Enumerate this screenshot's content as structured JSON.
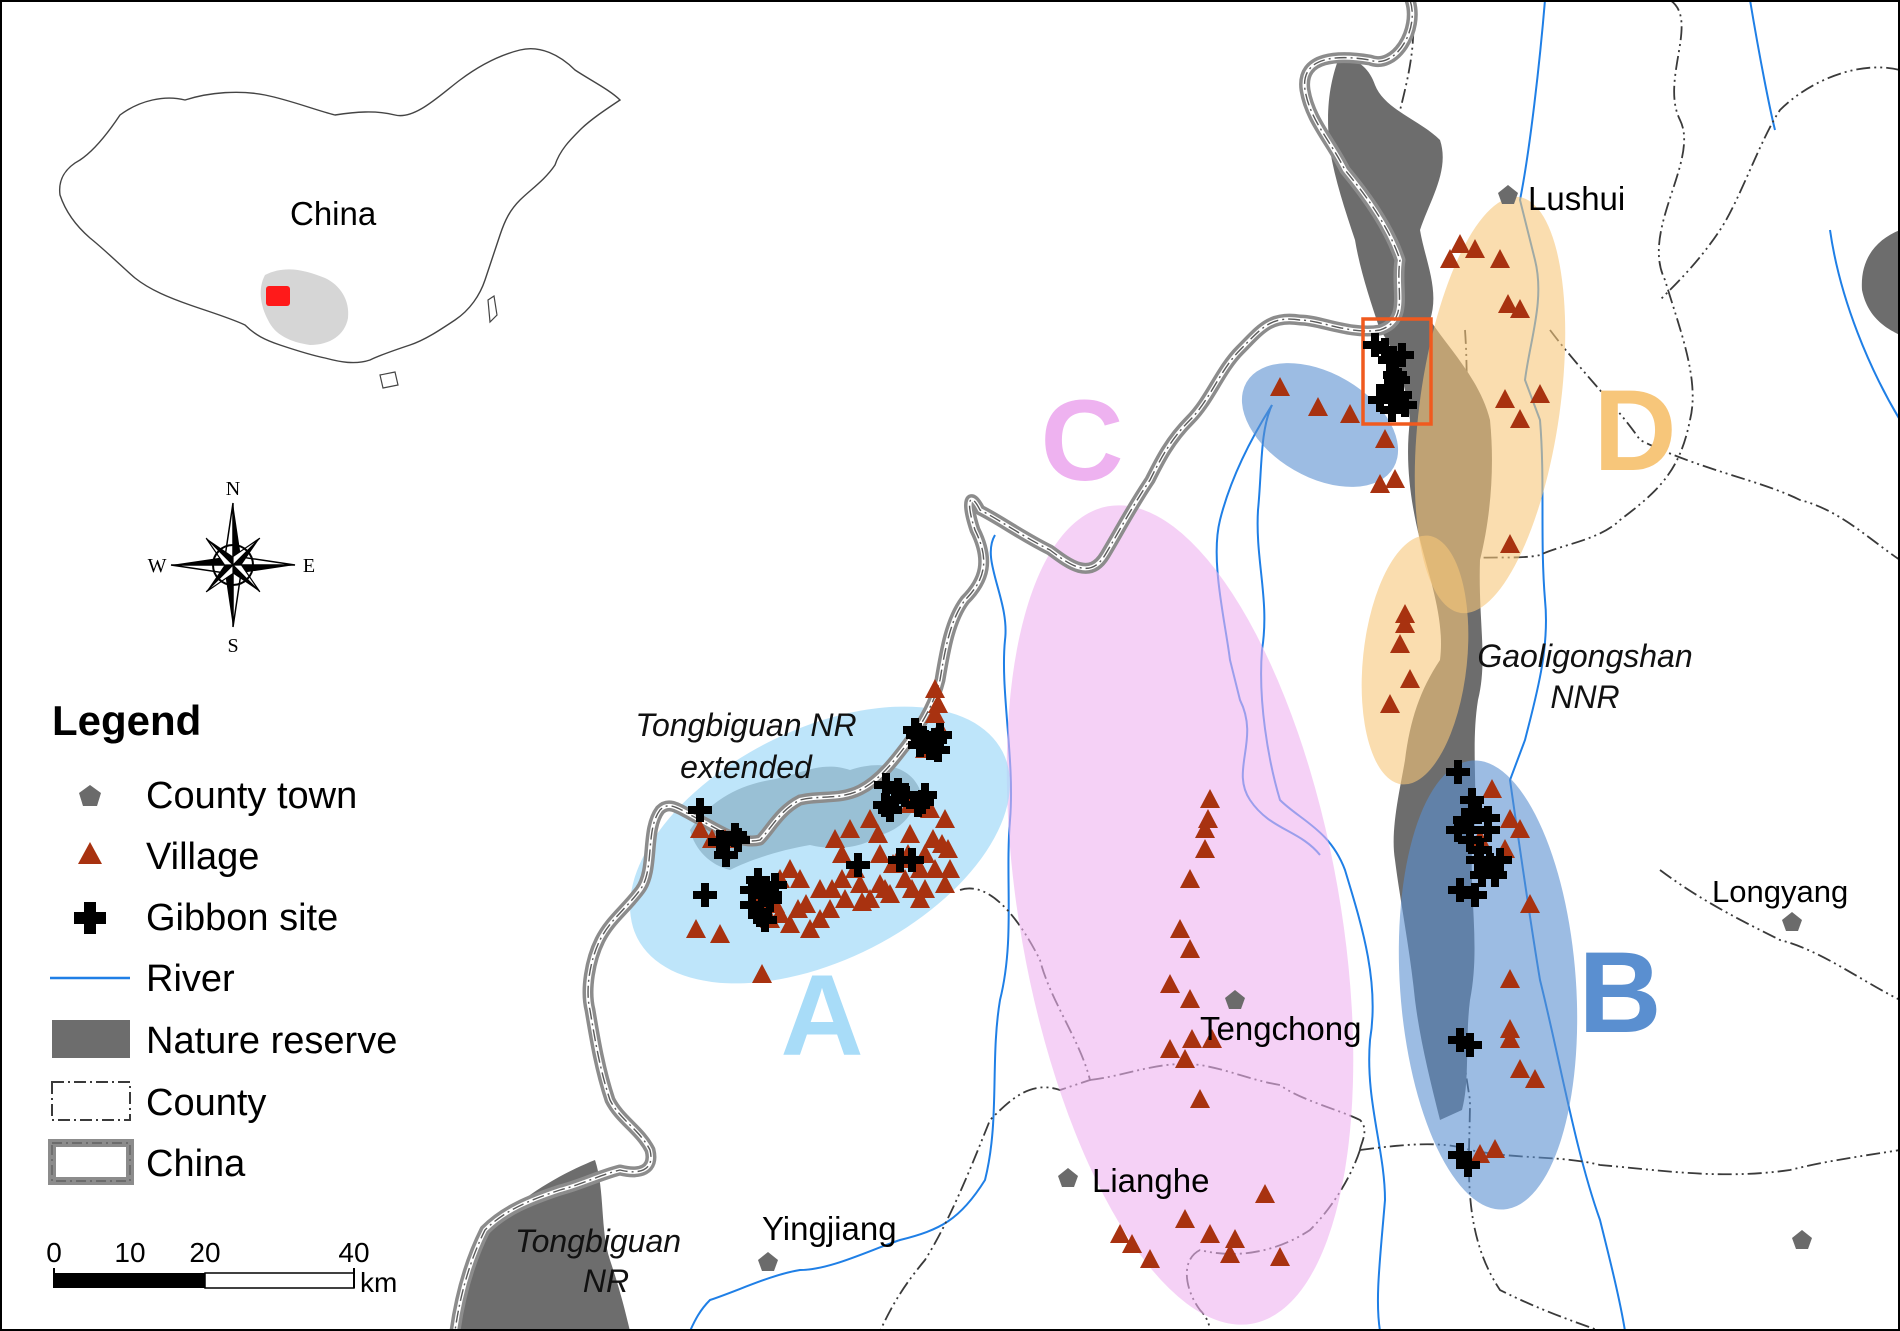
{
  "inset": {
    "country_label": "China",
    "study_marker_color": "#ff1a1a",
    "yunnan_color": "#d6d6d6"
  },
  "compass": {
    "n": "N",
    "s": "S",
    "e": "E",
    "w": "W"
  },
  "legend": {
    "title": "Legend",
    "items": [
      {
        "label": "County town",
        "symbol": "pentagon",
        "color": "#6b6b6b"
      },
      {
        "label": "Village",
        "symbol": "triangle",
        "color": "#a83210"
      },
      {
        "label": "Gibbon site",
        "symbol": "cross",
        "color": "#000000"
      },
      {
        "label": "River",
        "symbol": "line",
        "color": "#1f7fe6"
      },
      {
        "label": "Nature reserve",
        "symbol": "fill",
        "color": "#6d6d6d"
      },
      {
        "label": "County",
        "symbol": "dash-dot-box",
        "color": "#3a3a3a"
      },
      {
        "label": "China",
        "symbol": "double-box",
        "color": "#8c8c8c"
      }
    ]
  },
  "scale_bar": {
    "ticks": [
      "0",
      "10",
      "20",
      "40"
    ],
    "unit": "km"
  },
  "towns": [
    "Lushui",
    "Tengchong",
    "Lianghe",
    "Yingjiang",
    "Longyang"
  ],
  "reserves": {
    "tongbiguan_extended": [
      "Tongbiguan NR",
      "extended"
    ],
    "gaoligongshan": [
      "Gaoligongshan",
      "NNR"
    ],
    "tongbiguan": [
      "Tongbiguan",
      "NR"
    ]
  },
  "regions": [
    {
      "letter": "A",
      "color": "#a8dcf8"
    },
    {
      "letter": "B",
      "color": "#5a8fd0"
    },
    {
      "letter": "C",
      "color": "#eeb2f0"
    },
    {
      "letter": "D",
      "color": "#f7c67a"
    }
  ],
  "highlight_box_color": "#f05a1e",
  "colors": {
    "village": "#a83210",
    "gibbon": "#000000",
    "town": "#6b6b6b",
    "river": "#1f7fe6"
  }
}
